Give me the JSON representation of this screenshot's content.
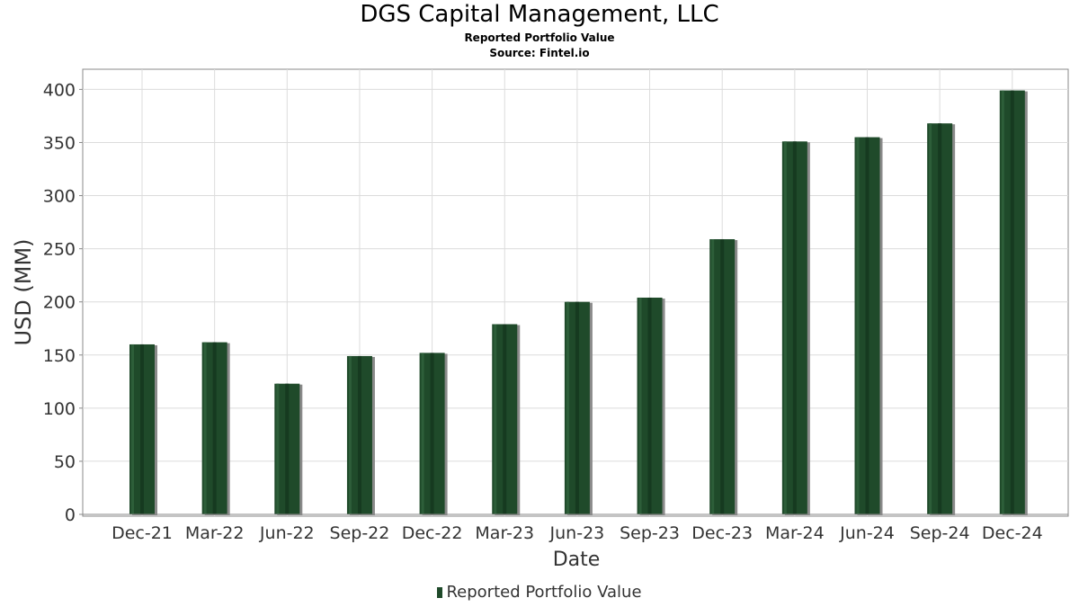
{
  "chart_data": {
    "type": "bar",
    "title": "DGS Capital Management, LLC",
    "subtitle": "Reported Portfolio Value",
    "source": "Source: Fintel.io",
    "xlabel": "Date",
    "ylabel": "USD (MM)",
    "ylim": [
      0,
      420
    ],
    "yticks": [
      0,
      50,
      100,
      150,
      200,
      250,
      300,
      350,
      400
    ],
    "grid": true,
    "legend_position": "bottom",
    "categories": [
      "Dec-21",
      "Mar-22",
      "Jun-22",
      "Sep-22",
      "Dec-22",
      "Mar-23",
      "Jun-23",
      "Sep-23",
      "Dec-23",
      "Mar-24",
      "Jun-24",
      "Sep-24",
      "Dec-24"
    ],
    "series": [
      {
        "name": "Reported Portfolio Value",
        "color": "#1f4a2a",
        "values": [
          160,
          162,
          123,
          149,
          152,
          179,
          200,
          204,
          259,
          351,
          355,
          368,
          399
        ]
      }
    ]
  }
}
